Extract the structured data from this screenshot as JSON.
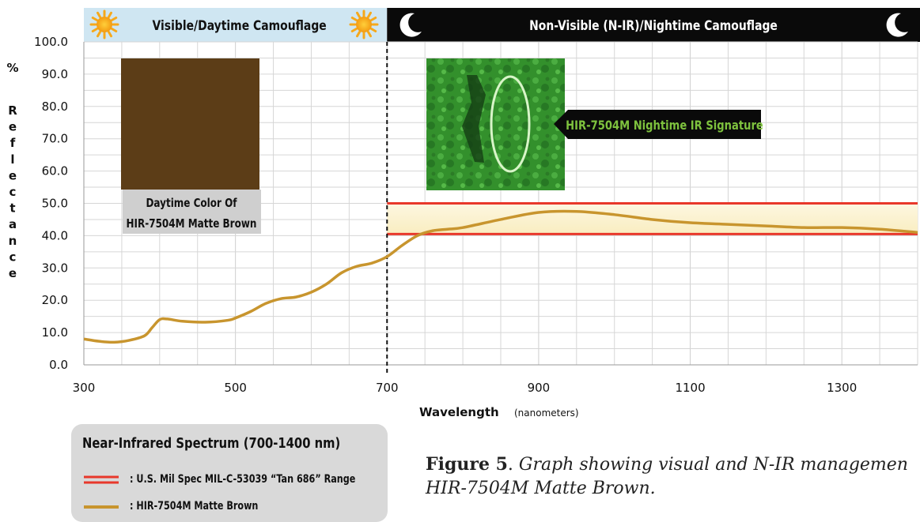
{
  "chart_data": {
    "type": "line",
    "title": "",
    "xlabel": "Wavelength",
    "xlabel_unit": "(nanometers)",
    "ylabel": "% Reflectance",
    "xlim": [
      300,
      1400
    ],
    "ylim": [
      0,
      100
    ],
    "x_ticks": [
      "300",
      "500",
      "700",
      "900",
      "1100",
      "1300"
    ],
    "y_ticks": [
      "0.0",
      "10.0",
      "20.0",
      "30.0",
      "40.0",
      "50.0",
      "60.0",
      "70.0",
      "80.0",
      "90.0",
      "100.0"
    ],
    "grid": true,
    "series": [
      {
        "name": "HIR-7504M Matte Brown",
        "color": "#c8952e",
        "x": [
          300,
          320,
          340,
          360,
          380,
          390,
          400,
          410,
          430,
          460,
          490,
          500,
          520,
          540,
          560,
          580,
          600,
          620,
          640,
          660,
          680,
          700,
          720,
          740,
          760,
          780,
          800,
          850,
          900,
          950,
          1000,
          1050,
          1100,
          1150,
          1200,
          1250,
          1300,
          1350,
          1400
        ],
        "values": [
          8.0,
          7.3,
          7.0,
          7.6,
          9.0,
          11.5,
          14.0,
          14.2,
          13.5,
          13.2,
          13.8,
          14.5,
          16.5,
          19.0,
          20.5,
          21.0,
          22.5,
          25.0,
          28.5,
          30.5,
          31.5,
          33.5,
          37.0,
          40.0,
          41.5,
          42.0,
          42.5,
          45.0,
          47.2,
          47.5,
          46.5,
          45.0,
          44.0,
          43.5,
          43.0,
          42.5,
          42.5,
          42.0,
          41.0
        ]
      }
    ],
    "bands": [
      {
        "name": "U.S. Mil Spec MIL-C-53039 “Tan 686” Range",
        "color": "#e8382b",
        "x_from": 700,
        "x_to": 1400,
        "low": 40.5,
        "high": 50.0
      }
    ],
    "divider_x": 700,
    "annotations": {
      "visible_region": "Visible/Daytime Camouflage",
      "nir_region": "Non-Visible (N-IR)/Nightime Camouflage",
      "swatch_label_line1": "Daytime Color Of",
      "swatch_label_line2": "HIR-7504M Matte Brown",
      "swatch_color": "#5c3d17",
      "ir_signature": "HIR-7504M Nightime IR Signature"
    }
  },
  "legend": {
    "title": "Near-Infrared Spectrum (700-1400 nm)",
    "items": [
      {
        "label": ": U.S. Mil Spec MIL-C-53039 “Tan 686” Range",
        "color": "#e8382b"
      },
      {
        "label": ": HIR-7504M Matte Brown",
        "color": "#c8952e"
      }
    ]
  },
  "caption": {
    "figure": "Figure 5",
    "text": "Graph showing visual and N-IR managemen",
    "text2": "HIR-7504M Matte Brown."
  },
  "colors": {
    "visible_header_bg": "#cfe6f2",
    "nir_header_bg": "#0a0a0a",
    "band_fill": "#fbf3d2",
    "night_image_green": "#3fa535"
  },
  "icons": [
    "sun-icon",
    "moon-icon"
  ]
}
